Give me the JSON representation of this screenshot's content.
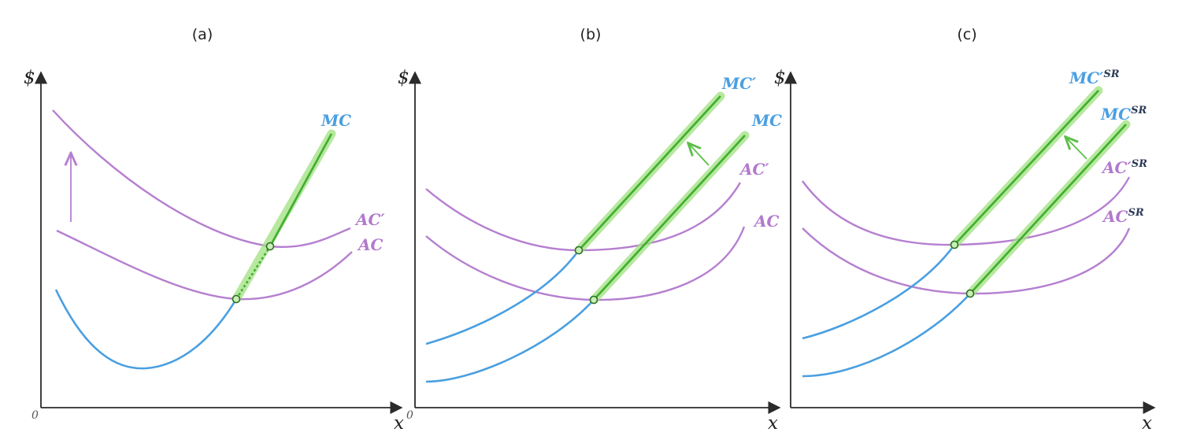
{
  "panels": [
    {
      "title": "(a)",
      "y_axis_label": "$",
      "x_axis_label": "x",
      "origin_label": "0",
      "labels": {
        "mc": "MC",
        "ac_new": "AC′",
        "ac": "AC"
      }
    },
    {
      "title": "(b)",
      "y_axis_label": "$",
      "x_axis_label": "x",
      "origin_label": "0",
      "labels": {
        "mc_new": "MC′",
        "mc": "MC",
        "ac_new": "AC′",
        "ac": "AC"
      }
    },
    {
      "title": "(c)",
      "y_axis_label": "$",
      "x_axis_label": "x",
      "origin_label": "0",
      "labels": {
        "mc_new": "MC′",
        "mc_new_sup": "SR",
        "mc": "MC",
        "mc_sup": "SR",
        "ac_new": "AC′",
        "ac_new_sup": "SR",
        "ac": "AC",
        "ac_sup": "SR"
      }
    }
  ],
  "colors": {
    "marginal_cost": "#4a9fe0",
    "average_cost": "#b57fd0",
    "supply_highlight": "#9fe07f",
    "axis": "#2b2b2b"
  },
  "icons": [
    "up-arrow-icon",
    "shift-arrow-icon"
  ]
}
